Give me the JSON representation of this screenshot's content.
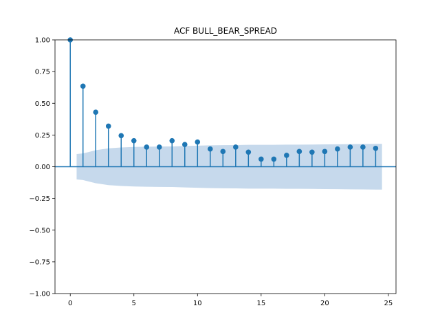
{
  "chart_data": {
    "type": "stem",
    "title": "ACF BULL_BEAR_SPREAD",
    "xlabel": "",
    "ylabel": "",
    "xlim": [
      -1.2,
      25.6
    ],
    "ylim": [
      -1.0,
      1.0
    ],
    "x_ticks": [
      0,
      5,
      10,
      15,
      20,
      25
    ],
    "x_tick_labels": [
      "0",
      "5",
      "10",
      "15",
      "20",
      "25"
    ],
    "y_ticks": [
      1.0,
      0.75,
      0.5,
      0.25,
      0.0,
      -0.25,
      -0.5,
      -0.75,
      -1.0
    ],
    "y_tick_labels": [
      "1.00",
      "0.75",
      "0.50",
      "0.25",
      "0.00",
      "−0.25",
      "−0.50",
      "−0.75",
      "−1.00"
    ],
    "grid": false,
    "lags": [
      0,
      1,
      2,
      3,
      4,
      5,
      6,
      7,
      8,
      9,
      10,
      11,
      12,
      13,
      14,
      15,
      16,
      17,
      18,
      19,
      20,
      21,
      22,
      23,
      24
    ],
    "values": [
      1.0,
      0.635,
      0.43,
      0.32,
      0.245,
      0.205,
      0.155,
      0.155,
      0.205,
      0.175,
      0.195,
      0.14,
      0.12,
      0.155,
      0.115,
      0.06,
      0.06,
      0.09,
      0.12,
      0.115,
      0.12,
      0.14,
      0.155,
      0.155,
      0.145
    ],
    "confidence_band": {
      "x": [
        0.5,
        1,
        2,
        3,
        4,
        5,
        6,
        7,
        8,
        9,
        10,
        11,
        12,
        13,
        14,
        15,
        16,
        17,
        18,
        19,
        20,
        21,
        22,
        23,
        24,
        24.5
      ],
      "upper": [
        0.1,
        0.105,
        0.13,
        0.145,
        0.152,
        0.156,
        0.158,
        0.159,
        0.16,
        0.163,
        0.166,
        0.169,
        0.17,
        0.171,
        0.173,
        0.173,
        0.173,
        0.174,
        0.174,
        0.175,
        0.176,
        0.177,
        0.178,
        0.179,
        0.18,
        0.18
      ]
    },
    "colors": {
      "stem": "#1f77b4",
      "band": "#c6d9ec",
      "zero_line": "#1f77b4",
      "axes": "#000000"
    }
  }
}
